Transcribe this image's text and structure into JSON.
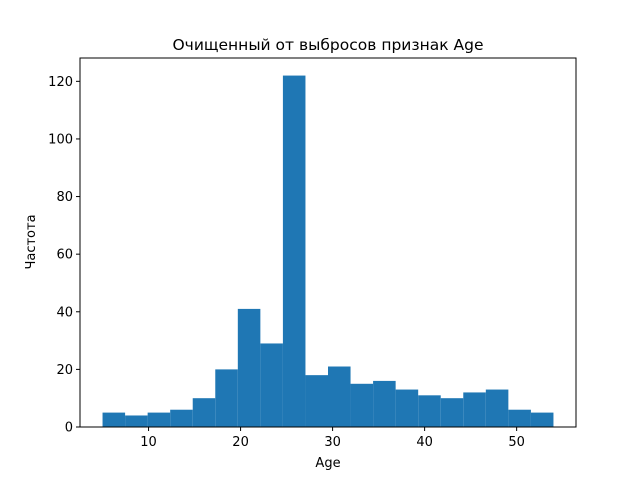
{
  "chart_data": {
    "type": "histogram",
    "title": "Очищенный от выбросов признак Age",
    "xlabel": "Age",
    "ylabel": "Частота",
    "bins": [
      5,
      7.45,
      9.9,
      12.35,
      14.8,
      17.25,
      19.7,
      22.15,
      24.6,
      27.05,
      29.5,
      31.95,
      34.4,
      36.85,
      39.3,
      41.75,
      44.2,
      46.65,
      49.1,
      51.55,
      54
    ],
    "values": [
      5,
      4,
      5,
      6,
      10,
      20,
      41,
      29,
      122,
      18,
      21,
      15,
      16,
      13,
      11,
      10,
      12,
      13,
      6,
      5
    ],
    "color": "#1f77b4",
    "xlim": [
      2.55,
      56.45
    ],
    "xticks": [
      10,
      20,
      30,
      40,
      50
    ],
    "ylim": [
      0,
      128.1
    ],
    "yticks": [
      0,
      20,
      40,
      60,
      80,
      100,
      120
    ]
  }
}
